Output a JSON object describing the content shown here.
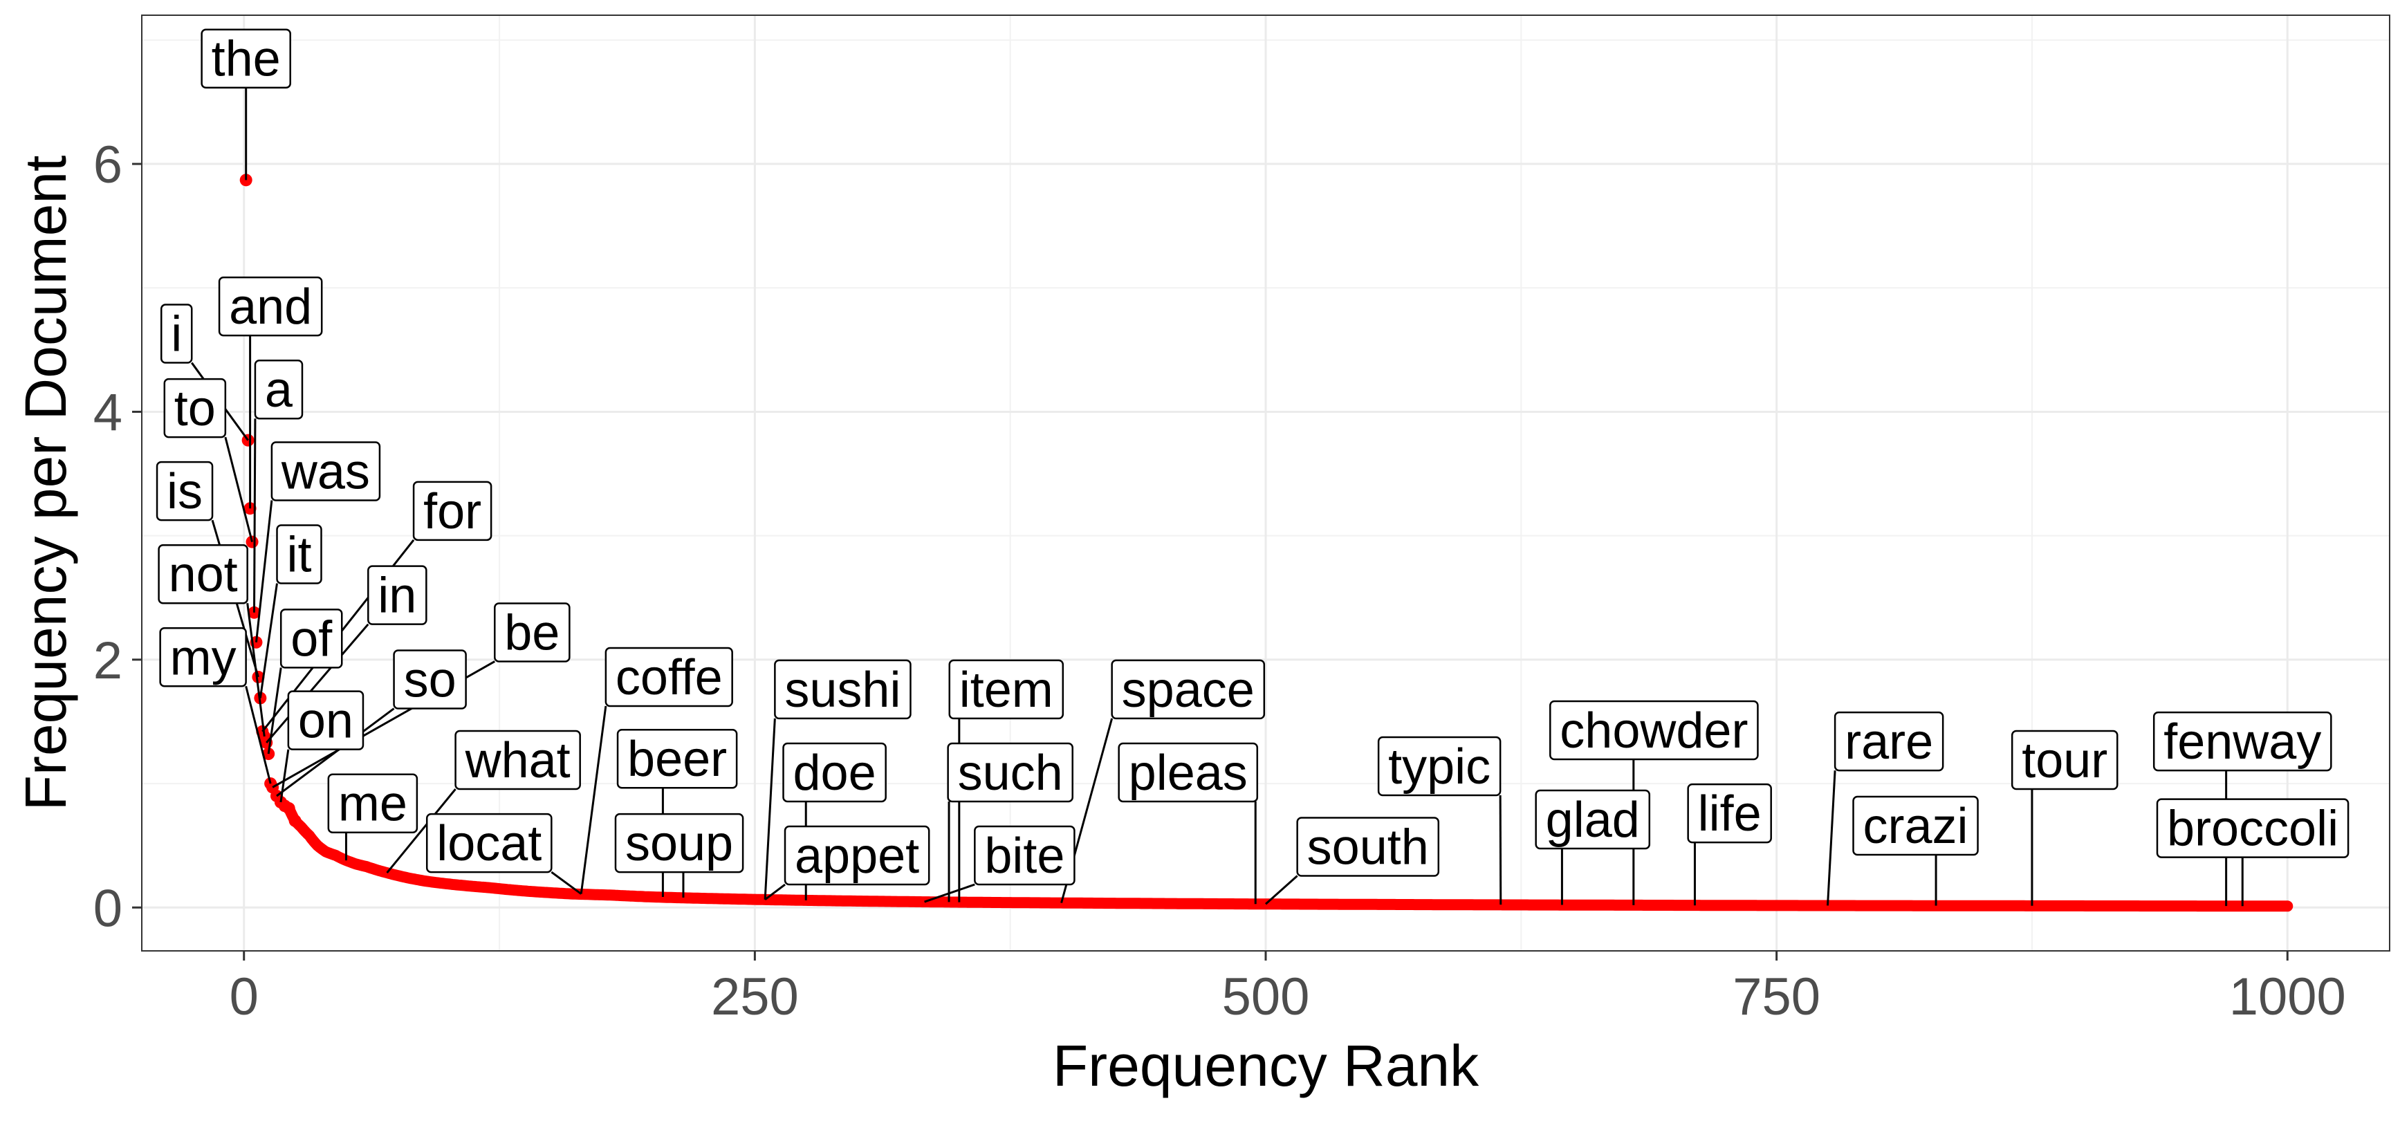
{
  "chart_data": {
    "type": "scatter",
    "title": "",
    "xlabel": "Frequency Rank",
    "ylabel": "Frequency per Document",
    "xlim": [
      -50,
      1050
    ],
    "ylim": [
      -0.35,
      7.2
    ],
    "x_ticks": [
      0,
      250,
      500,
      750,
      1000
    ],
    "y_ticks": [
      0,
      2,
      4,
      6
    ],
    "x_tick_labels": [
      "0",
      "250",
      "500",
      "750",
      "1000"
    ],
    "y_tick_labels": [
      "0",
      "2",
      "4",
      "6"
    ],
    "grid": true,
    "legend": "none",
    "point_color": "#ff0000",
    "curve": {
      "description_free_points": [
        [
          1,
          5.87
        ],
        [
          2,
          3.77
        ],
        [
          3,
          3.22
        ],
        [
          4,
          2.95
        ],
        [
          5,
          2.38
        ],
        [
          6,
          2.14
        ],
        [
          7,
          1.86
        ],
        [
          8,
          1.69
        ],
        [
          9,
          1.42
        ],
        [
          10,
          1.38
        ],
        [
          11,
          1.33
        ],
        [
          12,
          1.24
        ],
        [
          13,
          1.0
        ],
        [
          14,
          0.97
        ],
        [
          16,
          0.9
        ],
        [
          18,
          0.85
        ],
        [
          20,
          0.82
        ],
        [
          22,
          0.8
        ],
        [
          25,
          0.7
        ],
        [
          28,
          0.65
        ],
        [
          32,
          0.58
        ],
        [
          36,
          0.5
        ],
        [
          40,
          0.45
        ],
        [
          45,
          0.42
        ],
        [
          50,
          0.38
        ],
        [
          55,
          0.35
        ],
        [
          60,
          0.33
        ],
        [
          70,
          0.28
        ],
        [
          80,
          0.24
        ],
        [
          90,
          0.21
        ],
        [
          100,
          0.19
        ],
        [
          120,
          0.16
        ],
        [
          140,
          0.13
        ],
        [
          160,
          0.11
        ],
        [
          180,
          0.1
        ],
        [
          200,
          0.085
        ],
        [
          230,
          0.072
        ],
        [
          260,
          0.062
        ],
        [
          300,
          0.052
        ],
        [
          350,
          0.043
        ],
        [
          400,
          0.037
        ],
        [
          450,
          0.032
        ],
        [
          500,
          0.028
        ],
        [
          550,
          0.025
        ],
        [
          600,
          0.022
        ],
        [
          650,
          0.02
        ],
        [
          700,
          0.018
        ],
        [
          750,
          0.016
        ],
        [
          800,
          0.015
        ],
        [
          850,
          0.014
        ],
        [
          900,
          0.013
        ],
        [
          950,
          0.012
        ],
        [
          1000,
          0.011
        ]
      ]
    },
    "labels": [
      {
        "word": "the",
        "x": 1,
        "y": 5.87,
        "lx": 1,
        "ly": 6.85
      },
      {
        "word": "i",
        "x": 2,
        "y": 3.77,
        "lx": -33,
        "ly": 4.63
      },
      {
        "word": "and",
        "x": 3,
        "y": 3.22,
        "lx": 13,
        "ly": 4.85
      },
      {
        "word": "to",
        "x": 4,
        "y": 2.95,
        "lx": -24,
        "ly": 4.03
      },
      {
        "word": "a",
        "x": 5,
        "y": 2.38,
        "lx": 17,
        "ly": 4.18
      },
      {
        "word": "was",
        "x": 6,
        "y": 2.14,
        "lx": 40,
        "ly": 3.52
      },
      {
        "word": "is",
        "x": 7,
        "y": 1.86,
        "lx": -29,
        "ly": 3.36
      },
      {
        "word": "it",
        "x": 8,
        "y": 1.69,
        "lx": 27,
        "ly": 2.85
      },
      {
        "word": "for",
        "x": 9,
        "y": 1.42,
        "lx": 102,
        "ly": 3.2
      },
      {
        "word": "not",
        "x": 10,
        "y": 1.38,
        "lx": -20,
        "ly": 2.69
      },
      {
        "word": "in",
        "x": 11,
        "y": 1.33,
        "lx": 75,
        "ly": 2.52
      },
      {
        "word": "of",
        "x": 12,
        "y": 1.24,
        "lx": 33,
        "ly": 2.17
      },
      {
        "word": "my",
        "x": 13,
        "y": 1.0,
        "lx": -20,
        "ly": 2.02
      },
      {
        "word": "be",
        "x": 14,
        "y": 0.97,
        "lx": 141,
        "ly": 2.22
      },
      {
        "word": "so",
        "x": 16,
        "y": 0.9,
        "lx": 91,
        "ly": 1.84
      },
      {
        "word": "on",
        "x": 18,
        "y": 0.85,
        "lx": 40,
        "ly": 1.51
      },
      {
        "word": "what",
        "x": 70,
        "y": 0.28,
        "lx": 134,
        "ly": 1.19
      },
      {
        "word": "coffe",
        "x": 165,
        "y": 0.11,
        "lx": 208,
        "ly": 1.86
      },
      {
        "word": "me",
        "x": 50,
        "y": 0.38,
        "lx": 63,
        "ly": 0.84
      },
      {
        "word": "beer",
        "x": 205,
        "y": 0.085,
        "lx": 212,
        "ly": 1.2
      },
      {
        "word": "sushi",
        "x": 255,
        "y": 0.064,
        "lx": 293,
        "ly": 1.76
      },
      {
        "word": "item",
        "x": 350,
        "y": 0.043,
        "lx": 373,
        "ly": 1.76
      },
      {
        "word": "space",
        "x": 400,
        "y": 0.037,
        "lx": 462,
        "ly": 1.76
      },
      {
        "word": "doe",
        "x": 275,
        "y": 0.058,
        "lx": 289,
        "ly": 1.09
      },
      {
        "word": "such",
        "x": 345,
        "y": 0.044,
        "lx": 375,
        "ly": 1.09
      },
      {
        "word": "pleas",
        "x": 495,
        "y": 0.028,
        "lx": 462,
        "ly": 1.09
      },
      {
        "word": "locat",
        "x": 165,
        "y": 0.11,
        "lx": 120,
        "ly": 0.52
      },
      {
        "word": "soup",
        "x": 215,
        "y": 0.08,
        "lx": 213,
        "ly": 0.52
      },
      {
        "word": "appet",
        "x": 255,
        "y": 0.064,
        "lx": 300,
        "ly": 0.42
      },
      {
        "word": "bite",
        "x": 333,
        "y": 0.046,
        "lx": 382,
        "ly": 0.42
      },
      {
        "word": "typic",
        "x": 615,
        "y": 0.023,
        "lx": 585,
        "ly": 1.14
      },
      {
        "word": "south",
        "x": 500,
        "y": 0.028,
        "lx": 550,
        "ly": 0.49
      },
      {
        "word": "chowder",
        "x": 680,
        "y": 0.019,
        "lx": 690,
        "ly": 1.43
      },
      {
        "word": "glad",
        "x": 645,
        "y": 0.021,
        "lx": 660,
        "ly": 0.71
      },
      {
        "word": "life",
        "x": 710,
        "y": 0.017,
        "lx": 727,
        "ly": 0.76
      },
      {
        "word": "rare",
        "x": 775,
        "y": 0.016,
        "lx": 805,
        "ly": 1.34
      },
      {
        "word": "crazi",
        "x": 828,
        "y": 0.015,
        "lx": 818,
        "ly": 0.66
      },
      {
        "word": "tour",
        "x": 875,
        "y": 0.014,
        "lx": 891,
        "ly": 1.19
      },
      {
        "word": "fenway",
        "x": 970,
        "y": 0.012,
        "lx": 978,
        "ly": 1.34
      },
      {
        "word": "broccoli",
        "x": 978,
        "y": 0.011,
        "lx": 983,
        "ly": 0.64
      }
    ]
  }
}
